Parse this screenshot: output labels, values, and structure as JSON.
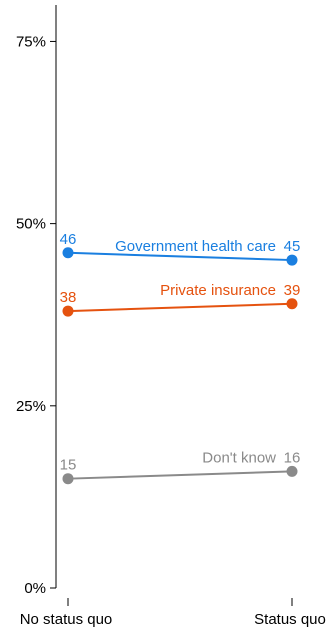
{
  "chart_data": {
    "type": "line",
    "categories": [
      "No status quo",
      "Status quo"
    ],
    "ylim": [
      0,
      80
    ],
    "yticks": [
      0,
      25,
      50,
      75
    ],
    "ytick_labels": [
      "0%",
      "25%",
      "50%",
      "75%"
    ],
    "grid": false,
    "legend": "none",
    "series": [
      {
        "name": "Government health care",
        "values": [
          46,
          45
        ],
        "value_labels": [
          "46",
          "45"
        ],
        "color": "#1a7fe0"
      },
      {
        "name": "Private insurance",
        "values": [
          38,
          39
        ],
        "value_labels": [
          "38",
          "39"
        ],
        "color": "#e5520f"
      },
      {
        "name": "Don't know",
        "values": [
          15,
          16
        ],
        "value_labels": [
          "15",
          "16"
        ],
        "color": "#8a8a8a"
      }
    ]
  }
}
